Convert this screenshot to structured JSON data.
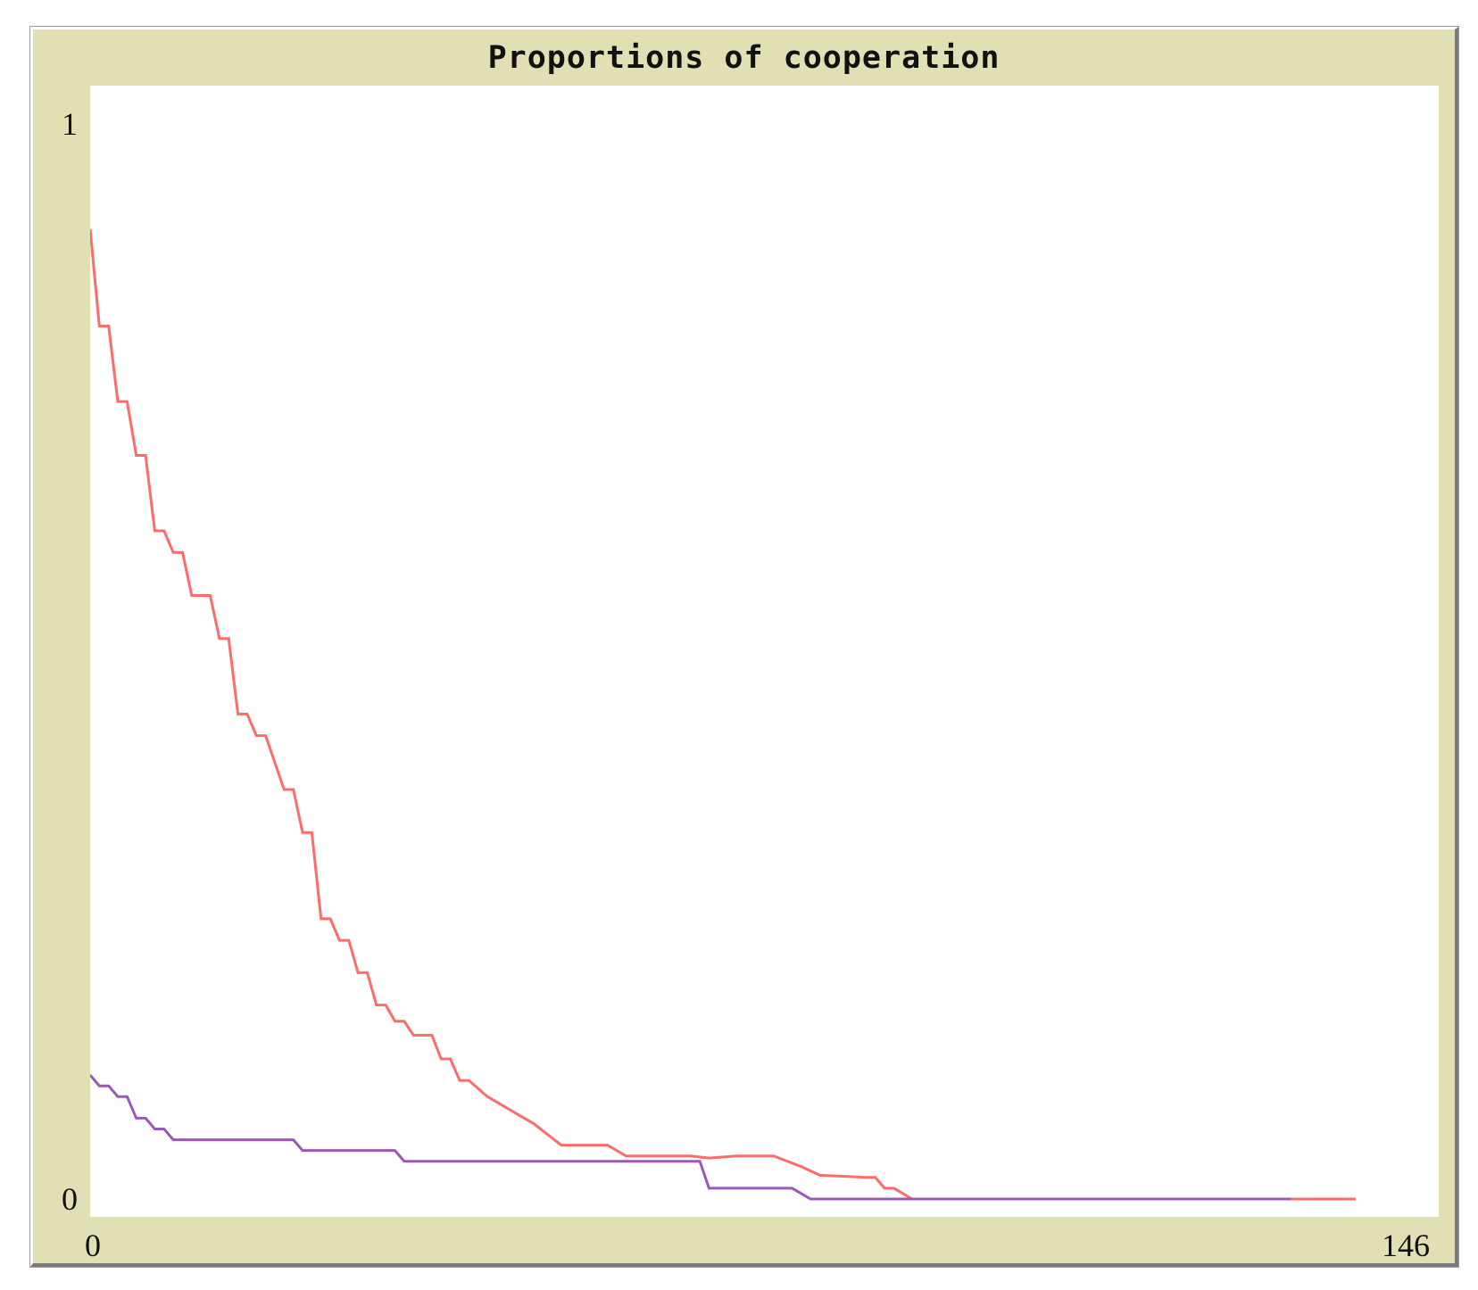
{
  "chart_data": {
    "type": "line",
    "title": "Proportions of cooperation",
    "xlabel": "",
    "ylabel": "",
    "xlim": [
      0,
      146
    ],
    "ylim": [
      0,
      1
    ],
    "x_tick_labels": [
      "0",
      "146"
    ],
    "y_tick_labels": [
      "0",
      "1"
    ],
    "grid": false,
    "background": "#e0e0b4",
    "plot_background": "#ffffff",
    "series": [
      {
        "color": "#ff6b6b",
        "x": [
          0,
          1,
          2,
          3,
          4,
          5,
          6,
          7,
          8,
          9,
          10,
          11,
          13,
          14,
          15,
          16,
          17,
          18,
          19,
          21,
          22,
          23,
          24,
          25,
          26,
          27,
          28,
          29,
          30,
          31,
          32,
          33,
          34,
          35,
          37,
          38,
          39,
          40,
          41,
          43,
          46,
          48,
          51,
          56,
          58,
          62,
          65,
          67,
          70,
          74,
          77,
          79,
          84,
          85,
          86,
          87,
          89,
          91,
          96,
          97,
          98,
          99,
          100,
          101,
          102,
          104,
          106,
          110,
          112,
          114,
          116,
          118,
          120,
          125,
          128,
          129,
          131,
          135,
          137
        ],
        "y": [
          0.9,
          0.81,
          0.81,
          0.74,
          0.74,
          0.69,
          0.69,
          0.62,
          0.62,
          0.6,
          0.6,
          0.56,
          0.56,
          0.52,
          0.52,
          0.45,
          0.45,
          0.43,
          0.43,
          0.38,
          0.38,
          0.34,
          0.34,
          0.26,
          0.26,
          0.24,
          0.24,
          0.21,
          0.21,
          0.18,
          0.18,
          0.165,
          0.165,
          0.152,
          0.152,
          0.13,
          0.13,
          0.11,
          0.11,
          0.095,
          0.08,
          0.07,
          0.05,
          0.05,
          0.04,
          0.04,
          0.04,
          0.038,
          0.04,
          0.04,
          0.03,
          0.022,
          0.02,
          0.02,
          0.01,
          0.01,
          0.0,
          0.0,
          0.0,
          0.0,
          0.0,
          0.0,
          0.0,
          0.0,
          0.0,
          0.0,
          0.0,
          0.0,
          0.0,
          0.0,
          0.0,
          0.0,
          0.0,
          0.0,
          0.0,
          0.0,
          0.0,
          0.0,
          0.0
        ]
      },
      {
        "color": "#9b59b6",
        "x": [
          0,
          1,
          2,
          3,
          4,
          5,
          6,
          7,
          8,
          9,
          10,
          11,
          12,
          22,
          23,
          24,
          33,
          34,
          45,
          46,
          47,
          48,
          66,
          67,
          68,
          76,
          78,
          96,
          110,
          119,
          128,
          130
        ],
        "y": [
          0.115,
          0.105,
          0.105,
          0.095,
          0.095,
          0.075,
          0.075,
          0.065,
          0.065,
          0.055,
          0.055,
          0.055,
          0.055,
          0.055,
          0.045,
          0.045,
          0.045,
          0.035,
          0.035,
          0.035,
          0.035,
          0.035,
          0.035,
          0.01,
          0.01,
          0.01,
          0.0,
          0.0,
          0.0,
          0.0,
          0.0,
          0.0
        ]
      }
    ]
  }
}
